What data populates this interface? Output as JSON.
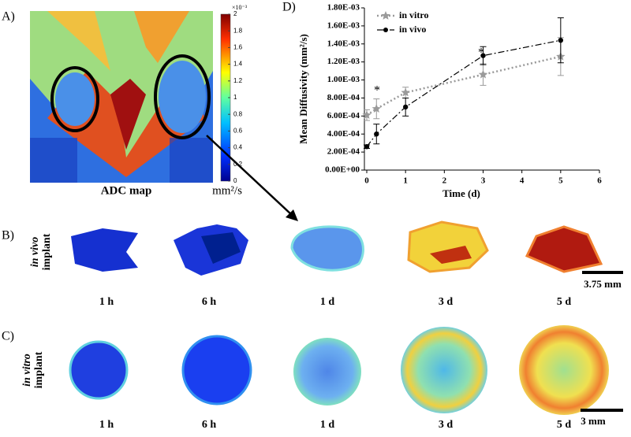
{
  "panels": {
    "a": {
      "label": "A)",
      "caption": "ADC map",
      "unit": "mm²/s",
      "colorbar": {
        "exponent": "×10⁻³",
        "ticks": [
          0,
          0.2,
          0.4,
          0.6,
          0.8,
          1,
          1.2,
          1.4,
          1.6,
          1.8,
          2
        ]
      }
    },
    "b": {
      "label": "B)",
      "row_label": [
        "in vivo",
        "implant"
      ],
      "times": [
        "1 h",
        "6 h",
        "1 d",
        "3 d",
        "5 d"
      ],
      "scale": "3.75 mm"
    },
    "c": {
      "label": "C)",
      "row_label": [
        "in vitro",
        "implant"
      ],
      "times": [
        "1 h",
        "6 h",
        "1 d",
        "3 d",
        "5 d"
      ],
      "scale": "3 mm"
    },
    "d": {
      "label": "D)"
    }
  },
  "chart_data": {
    "type": "line",
    "x_label": "Time (d)",
    "y_label": "Mean Diffusivity (mm²/s)",
    "x": [
      0,
      0.25,
      1,
      3,
      5
    ],
    "series": [
      {
        "name": "in vitro",
        "color": "#9a9a9a",
        "marker": "star",
        "dash": "2,3",
        "values": [
          0.00061,
          0.00068,
          0.00086,
          0.00106,
          0.00126
        ],
        "errors": [
          6e-05,
          0.00011,
          6e-05,
          0.00012,
          0.00021
        ]
      },
      {
        "name": "in vivo",
        "color": "#000000",
        "marker": "dot",
        "dash": "8,3,2,3",
        "values": [
          0.00026,
          0.0004,
          0.0007,
          0.00127,
          0.00144
        ],
        "errors": [
          2e-05,
          0.00011,
          0.0001,
          0.0001,
          0.00025
        ]
      }
    ],
    "annotations": [
      "*",
      "*"
    ],
    "xlim": [
      0,
      6
    ],
    "xticks": [
      0,
      1,
      2,
      3,
      4,
      5,
      6
    ],
    "ylim": [
      0,
      0.0018
    ],
    "yticks": [
      {
        "value": 0,
        "label": "0.00E+00"
      },
      {
        "value": 0.0002,
        "label": "2.00E-04"
      },
      {
        "value": 0.0004,
        "label": "4.00E-04"
      },
      {
        "value": 0.0006,
        "label": "6.00E-04"
      },
      {
        "value": 0.0008,
        "label": "8.00E-04"
      },
      {
        "value": 0.001,
        "label": "1.00E-03"
      },
      {
        "value": 0.0012,
        "label": "1.20E-03"
      },
      {
        "value": 0.0014,
        "label": "1.40E-03"
      },
      {
        "value": 0.0016,
        "label": "1.60E-03"
      },
      {
        "value": 0.0018,
        "label": "1.80E-03"
      }
    ],
    "legend": "top-left"
  }
}
